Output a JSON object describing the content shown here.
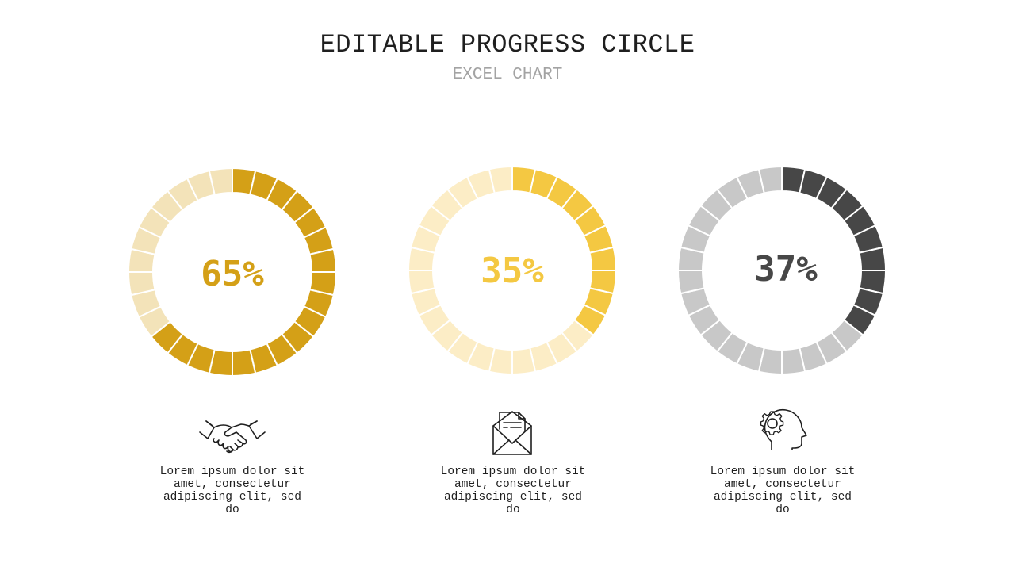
{
  "header": {
    "title": "EDITABLE PROGRESS CIRCLE",
    "subtitle": "EXCEL CHART"
  },
  "chart_data": [
    {
      "type": "pie",
      "segments": 28,
      "value": 65,
      "label": "65%",
      "colors": {
        "filled": "#d4a017",
        "empty": "#f3e3b9",
        "text": "#d4a017"
      },
      "icon": "handshake-icon",
      "description": "Lorem ipsum dolor sit amet, consectetur adipiscing elit, sed do"
    },
    {
      "type": "pie",
      "segments": 28,
      "value": 35,
      "label": "35%",
      "colors": {
        "filled": "#f4c842",
        "empty": "#fcedc6",
        "text": "#f4c842"
      },
      "icon": "mail-envelope-icon",
      "description": "Lorem ipsum dolor sit amet, consectetur adipiscing elit, sed do"
    },
    {
      "type": "pie",
      "segments": 28,
      "value": 37,
      "label": "37%",
      "colors": {
        "filled": "#474747",
        "empty": "#c8c8c8",
        "text": "#474747"
      },
      "icon": "head-gear-icon",
      "description": "Lorem ipsum dolor sit amet, consectetur adipiscing elit, sed do"
    }
  ]
}
